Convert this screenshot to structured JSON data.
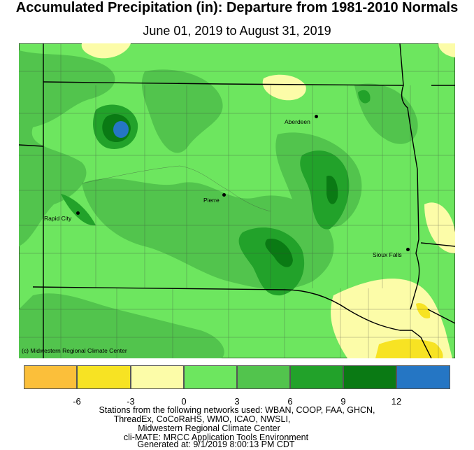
{
  "title": "Accumulated Precipitation (in): Departure from 1981-2010 Normals",
  "subtitle": "June 01, 2019 to August 31, 2019",
  "map": {
    "credit": "(c) Midwestern Regional Climate Center",
    "cities": [
      {
        "name": "Aberdeen"
      },
      {
        "name": "Pierre"
      },
      {
        "name": "Rapid City"
      },
      {
        "name": "Sioux Falls"
      }
    ]
  },
  "legend": {
    "colors": [
      "#fbbf3a",
      "#f7e323",
      "#fcfca8",
      "#6de65f",
      "#52c44d",
      "#22a22a",
      "#0a7a14",
      "#2576c4"
    ],
    "ticks": [
      "-6",
      "-3",
      "0",
      "3",
      "6",
      "9",
      "12"
    ]
  },
  "footer": {
    "line1": "Stations from the following networks used: WBAN, COOP, FAA, GHCN,",
    "line2": "ThreadEx, CoCoRaHS, WMO, ICAO, NWSLI,",
    "line3": "Midwestern Regional Climate Center",
    "line4": "cli-MATE: MRCC Application Tools Environment",
    "line5": "Generated at: 9/1/2019 8:00:13 PM CDT"
  }
}
